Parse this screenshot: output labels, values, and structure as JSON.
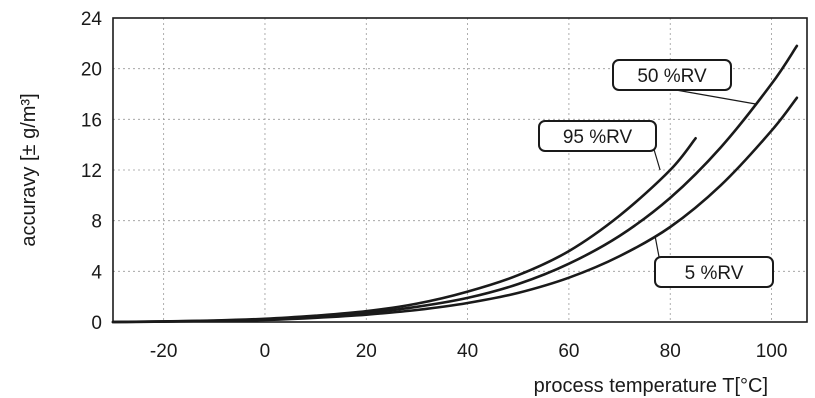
{
  "chart_data": {
    "type": "line",
    "title": "",
    "xlabel": "process temperature T[°C]",
    "ylabel": "accuravy  [± g/m³]",
    "xlim": [
      -30,
      107
    ],
    "ylim": [
      0,
      24
    ],
    "x_ticks": [
      -20,
      0,
      20,
      40,
      60,
      80,
      100
    ],
    "y_ticks": [
      0,
      4,
      8,
      12,
      16,
      20,
      24
    ],
    "grid": true,
    "series": [
      {
        "name": "95 %RV",
        "x": [
          -30,
          -20,
          -10,
          0,
          10,
          20,
          30,
          40,
          50,
          60,
          70,
          80,
          85
        ],
        "y": [
          0,
          0.05,
          0.12,
          0.25,
          0.5,
          0.85,
          1.45,
          2.4,
          3.7,
          5.6,
          8.4,
          12.0,
          14.5
        ]
      },
      {
        "name": "50 %RV",
        "x": [
          -30,
          -20,
          -10,
          0,
          10,
          20,
          30,
          40,
          50,
          60,
          70,
          80,
          90,
          100,
          105
        ],
        "y": [
          0,
          0.04,
          0.1,
          0.2,
          0.42,
          0.72,
          1.2,
          1.9,
          3.0,
          4.6,
          6.8,
          9.8,
          13.8,
          18.8,
          21.8
        ]
      },
      {
        "name": "5 %RV",
        "x": [
          -30,
          -20,
          -10,
          0,
          10,
          20,
          30,
          40,
          50,
          60,
          70,
          80,
          90,
          100,
          105
        ],
        "y": [
          0,
          0.03,
          0.08,
          0.16,
          0.33,
          0.58,
          0.95,
          1.5,
          2.3,
          3.5,
          5.2,
          7.5,
          10.8,
          15.1,
          17.7
        ]
      }
    ],
    "annotations": [
      {
        "label": "50 %RV",
        "series": "50 %RV",
        "point": [
          97,
          17.2
        ]
      },
      {
        "label": "95 %RV",
        "series": "95 %RV",
        "point": [
          78,
          12.0
        ]
      },
      {
        "label": "5 %RV",
        "series": "5 %RV",
        "point": [
          77,
          6.8
        ]
      }
    ]
  }
}
